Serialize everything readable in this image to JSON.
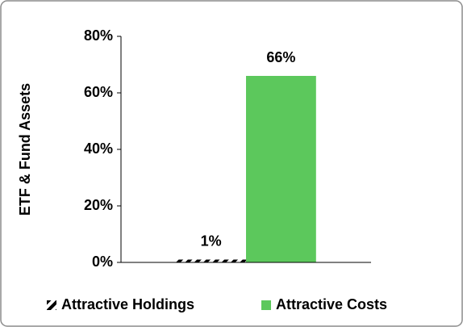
{
  "chart_data": {
    "type": "bar",
    "y_label": "ETF & Fund Assets",
    "categories": [
      null
    ],
    "series": [
      {
        "name": "Attractive Holdings",
        "color": "#000000",
        "hatch": true,
        "values": [
          1
        ],
        "value_labels": [
          "1%"
        ]
      },
      {
        "name": "Attractive Costs",
        "color": "#5cc85c",
        "values": [
          66
        ],
        "value_labels": [
          "66%"
        ]
      }
    ],
    "ylim": [
      0,
      80
    ],
    "yticks": [
      {
        "value": 0,
        "label": "0%"
      },
      {
        "value": 20,
        "label": "20%"
      },
      {
        "value": 40,
        "label": "40%"
      },
      {
        "value": 60,
        "label": "60%"
      },
      {
        "value": 80,
        "label": "80%"
      }
    ],
    "legend": "bottom"
  }
}
